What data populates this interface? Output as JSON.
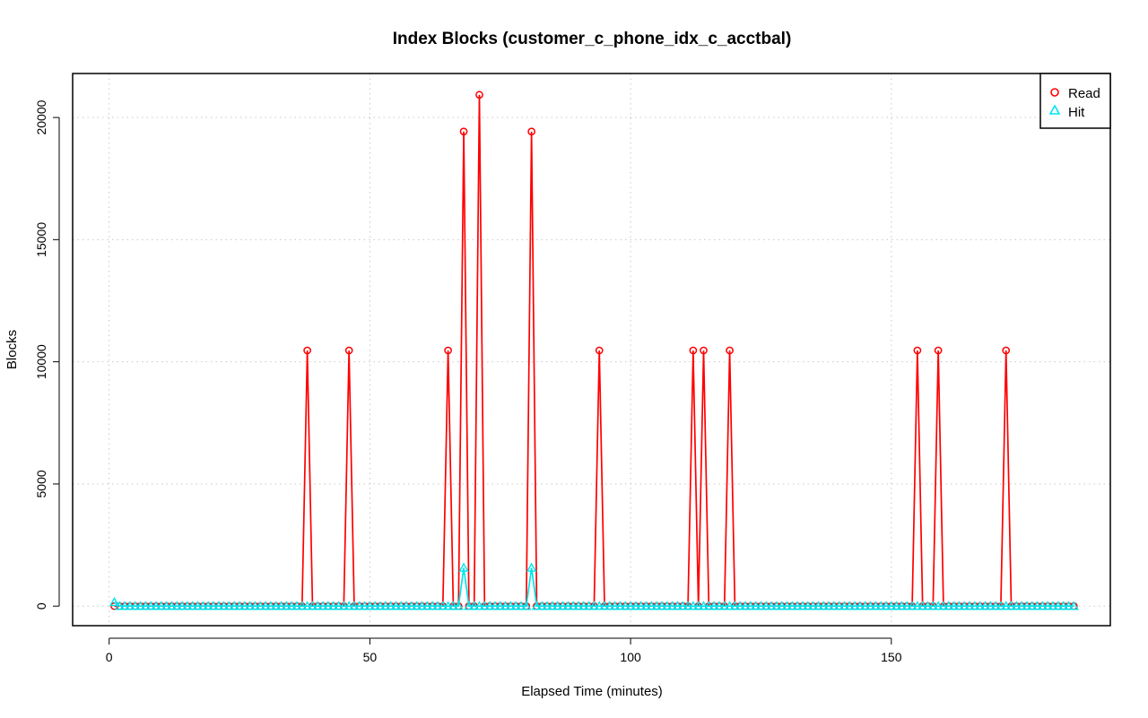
{
  "chart_data": {
    "type": "line",
    "title": "Index Blocks (customer_c_phone_idx_c_acctbal)",
    "xlabel": "Elapsed Time (minutes)",
    "ylabel": "Blocks",
    "xlim": [
      -7,
      192
    ],
    "ylim": [
      -800,
      21800
    ],
    "x_ticks": [
      0,
      50,
      100,
      150
    ],
    "y_ticks": [
      0,
      5000,
      10000,
      15000,
      20000
    ],
    "x_tick_labels": [
      "0",
      "50",
      "100",
      "150"
    ],
    "y_tick_labels": [
      "0",
      "5000",
      "10000",
      "15000",
      "20000"
    ],
    "grid": true,
    "legend_position": "top-right",
    "x_start": 1,
    "x_end": 185,
    "series": [
      {
        "name": "Read",
        "color": "#ff0000",
        "marker": "circle",
        "spikes": [
          {
            "x": 38,
            "y": 10464
          },
          {
            "x": 46,
            "y": 10464
          },
          {
            "x": 65,
            "y": 10464
          },
          {
            "x": 68,
            "y": 19424
          },
          {
            "x": 71,
            "y": 20928
          },
          {
            "x": 81,
            "y": 19424
          },
          {
            "x": 94,
            "y": 10464
          },
          {
            "x": 112,
            "y": 10464
          },
          {
            "x": 114,
            "y": 10464
          },
          {
            "x": 119,
            "y": 10464
          },
          {
            "x": 155,
            "y": 10464
          },
          {
            "x": 159,
            "y": 10464
          },
          {
            "x": 172,
            "y": 10464
          }
        ]
      },
      {
        "name": "Hit",
        "color": "#00e5ee",
        "marker": "triangle",
        "spikes": [
          {
            "x": 1,
            "y": 160
          },
          {
            "x": 68,
            "y": 1568
          },
          {
            "x": 81,
            "y": 1568
          }
        ]
      }
    ]
  }
}
